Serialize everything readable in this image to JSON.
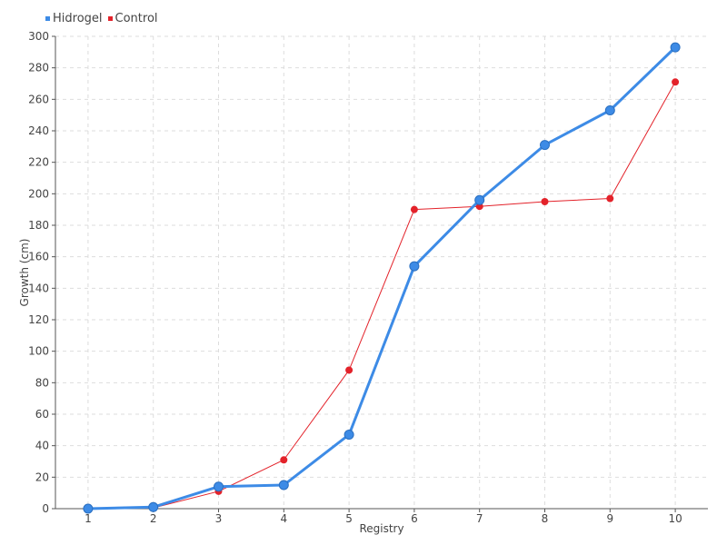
{
  "chart_data": {
    "type": "line",
    "x": [
      1,
      2,
      3,
      4,
      5,
      6,
      7,
      8,
      9,
      10
    ],
    "series": [
      {
        "name": "Hidrogel",
        "color": "#3d8be6",
        "values": [
          0,
          1,
          14,
          15,
          47,
          154,
          196,
          231,
          253,
          293
        ]
      },
      {
        "name": "Control",
        "color": "#e3222a",
        "values": [
          0,
          0.5,
          11,
          31,
          88,
          190,
          192,
          195,
          197,
          271
        ]
      }
    ],
    "xlabel": "Registry",
    "ylabel": "Growth (cm)",
    "xlim": [
      0.5,
      10.5
    ],
    "ylim": [
      0,
      300
    ],
    "yticks": [
      0,
      20,
      40,
      60,
      80,
      100,
      120,
      140,
      160,
      180,
      200,
      220,
      240,
      260,
      280,
      300
    ],
    "xticks": [
      "1",
      "2",
      "3",
      "4",
      "5",
      "6",
      "7",
      "8",
      "9",
      "10"
    ],
    "grid": true,
    "legend_position": "top-left"
  }
}
